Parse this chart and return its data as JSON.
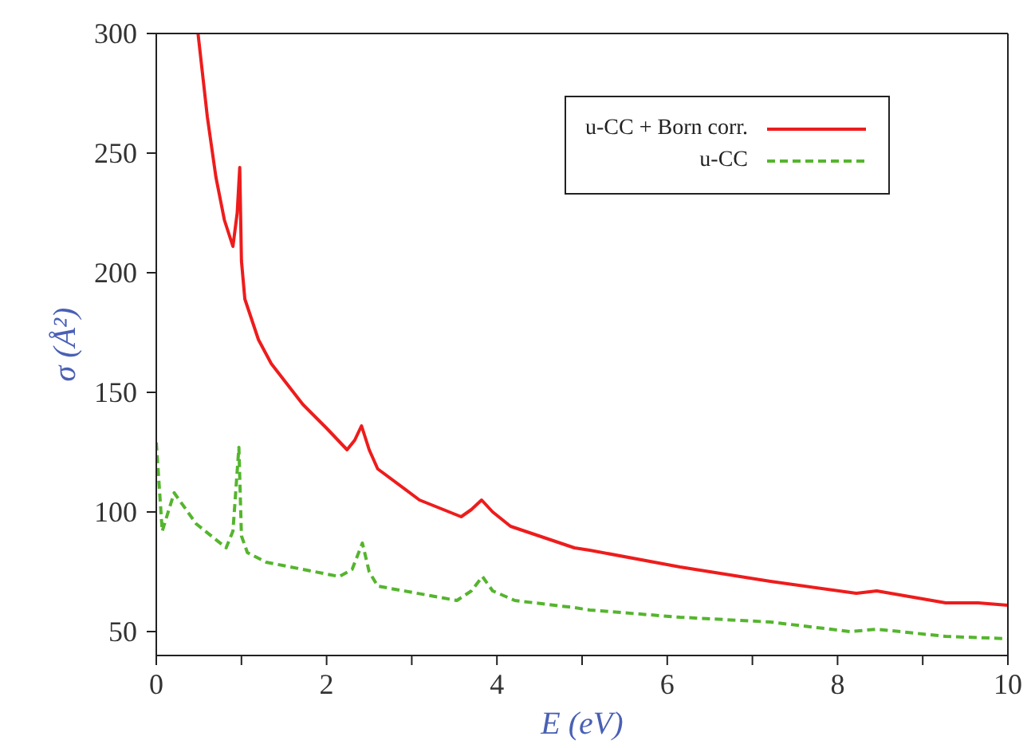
{
  "chart_data": {
    "type": "line",
    "xlabel": "E (eV)",
    "ylabel": "σ (Å²)",
    "xlim": [
      0,
      10
    ],
    "ylim": [
      40,
      300
    ],
    "xticks": [
      0,
      {
        "value": 1,
        "label": null
      },
      2,
      {
        "value": 3,
        "label": null
      },
      4,
      {
        "value": 5,
        "label": null
      },
      6,
      {
        "value": 7,
        "label": null
      },
      8,
      {
        "value": 9,
        "label": null
      },
      10
    ],
    "yticks": [
      50,
      100,
      150,
      200,
      250,
      300
    ],
    "legend": "top right",
    "marker": "none",
    "series": [
      {
        "name": "u-CC + Born corr.",
        "color": "#ee1c1c",
        "line_style": "solid",
        "x": [
          0.49,
          0.6,
          0.7,
          0.8,
          0.9,
          0.95,
          0.98,
          1.0,
          1.04,
          1.2,
          1.35,
          1.72,
          2.0,
          2.24,
          2.33,
          2.41,
          2.5,
          2.6,
          3.09,
          3.58,
          3.7,
          3.82,
          3.95,
          4.16,
          4.91,
          5.09,
          6.15,
          7.21,
          8.22,
          8.46,
          9.27,
          9.65,
          10
        ],
        "values": [
          300,
          265,
          240,
          222,
          211,
          225,
          244,
          205,
          189,
          172,
          162,
          145,
          135,
          126,
          130,
          136,
          126,
          118,
          105,
          98,
          101,
          105,
          100,
          94,
          85,
          84,
          77,
          71,
          66,
          67,
          62,
          62,
          61
        ]
      },
      {
        "name": "u-CC",
        "color": "#55b52e",
        "line_style": "dashed",
        "x": [
          0,
          0.07,
          0.21,
          0.47,
          0.82,
          0.9,
          0.97,
          1.0,
          1.07,
          1.29,
          2.15,
          2.3,
          2.42,
          2.5,
          2.6,
          3.53,
          3.7,
          3.83,
          3.95,
          4.21,
          4.91,
          5.09,
          6.15,
          7.21,
          8.15,
          8.46,
          9.27,
          10
        ],
        "values": [
          129,
          92,
          108,
          95,
          85,
          92,
          127,
          90,
          83,
          79,
          73,
          76,
          87,
          75,
          69,
          63,
          67,
          73,
          67,
          63,
          60,
          59,
          56,
          54,
          50,
          51,
          48,
          47
        ]
      }
    ]
  }
}
